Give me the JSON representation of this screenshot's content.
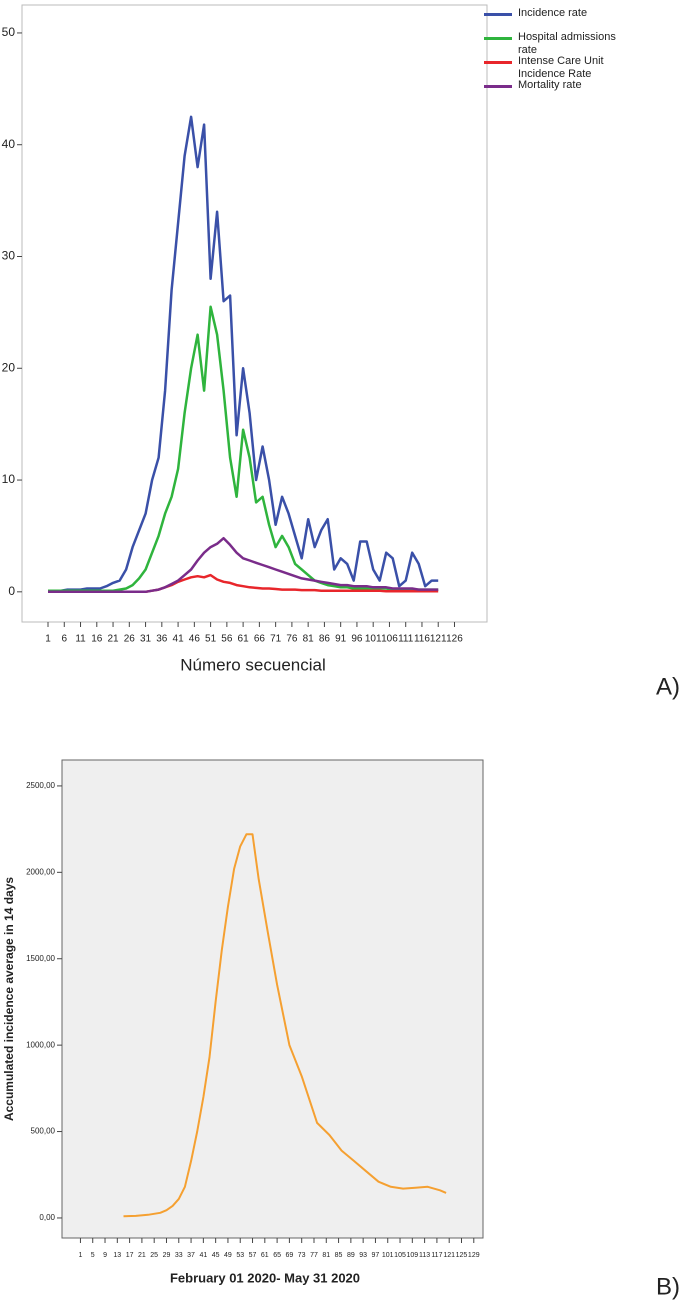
{
  "chart_data": [
    {
      "type": "line",
      "panel_label": "A)",
      "x_label": "Número secuencial",
      "legend": "right-outside",
      "grid": false,
      "x": [
        1,
        3,
        5,
        7,
        9,
        11,
        13,
        15,
        17,
        19,
        21,
        23,
        25,
        27,
        29,
        31,
        33,
        35,
        37,
        39,
        41,
        43,
        45,
        47,
        49,
        51,
        53,
        55,
        57,
        59,
        61,
        63,
        65,
        67,
        69,
        71,
        73,
        75,
        77,
        79,
        81,
        83,
        85,
        87,
        89,
        91,
        93,
        95,
        97,
        99,
        101,
        103,
        105,
        107,
        109,
        111,
        113,
        115,
        117,
        119,
        121
      ],
      "series": [
        {
          "name": "Incidence rate",
          "color": "#3a50a8",
          "values": [
            0.1,
            0.1,
            0.1,
            0.2,
            0.2,
            0.2,
            0.3,
            0.3,
            0.3,
            0.5,
            0.8,
            1,
            2,
            4,
            5.5,
            7,
            10,
            12,
            18,
            27,
            33,
            39,
            42.5,
            38,
            41.8,
            28,
            34,
            26,
            26.5,
            14,
            20,
            16,
            10,
            13,
            10,
            6,
            8.5,
            7,
            5,
            3,
            6.5,
            4,
            5.5,
            6.5,
            2,
            3,
            2.5,
            1,
            4.5,
            4.5,
            2,
            1,
            3.5,
            3,
            0.5,
            1,
            3.5,
            2.5,
            0.5,
            1,
            1
          ]
        },
        {
          "name": "Hospital admissions rate",
          "color": "#2fb43d",
          "values": [
            0.1,
            0.1,
            0.1,
            0.1,
            0.1,
            0.1,
            0.1,
            0.1,
            0.1,
            0.1,
            0.1,
            0.2,
            0.3,
            0.6,
            1.2,
            2,
            3.5,
            5,
            7,
            8.5,
            11,
            16,
            20,
            23,
            18,
            25.5,
            23,
            18,
            12,
            8.5,
            14.5,
            12,
            8,
            8.5,
            6,
            4,
            5,
            4,
            2.5,
            2,
            1.5,
            1,
            0.8,
            0.6,
            0.5,
            0.4,
            0.4,
            0.3,
            0.3,
            0.3,
            0.3,
            0.3,
            0.3,
            0.2,
            0.2,
            0.2,
            0.2,
            0.2,
            0.2,
            0.2,
            0.2
          ]
        },
        {
          "name": "Intense Care Unit Incidence Rate",
          "color": "#e8262b",
          "values": [
            0,
            0,
            0,
            0,
            0,
            0,
            0,
            0,
            0,
            0,
            0,
            0,
            0,
            0,
            0,
            0,
            0.1,
            0.2,
            0.4,
            0.6,
            0.9,
            1.1,
            1.3,
            1.4,
            1.3,
            1.5,
            1.1,
            0.9,
            0.8,
            0.6,
            0.5,
            0.4,
            0.35,
            0.3,
            0.3,
            0.25,
            0.2,
            0.2,
            0.2,
            0.15,
            0.15,
            0.15,
            0.1,
            0.1,
            0.1,
            0.1,
            0.1,
            0.1,
            0.1,
            0.1,
            0.1,
            0.1,
            0.05,
            0.05,
            0.05,
            0.05,
            0.05,
            0.05,
            0.05,
            0.05,
            0.05
          ]
        },
        {
          "name": "Mortality rate",
          "color": "#7a2c8a",
          "values": [
            0,
            0,
            0,
            0,
            0,
            0,
            0,
            0,
            0,
            0,
            0,
            0,
            0,
            0,
            0,
            0,
            0.1,
            0.2,
            0.4,
            0.7,
            1,
            1.5,
            2,
            2.8,
            3.5,
            4,
            4.3,
            4.8,
            4.2,
            3.5,
            3,
            2.8,
            2.6,
            2.4,
            2.2,
            2,
            1.8,
            1.6,
            1.4,
            1.2,
            1.1,
            1,
            0.9,
            0.8,
            0.7,
            0.6,
            0.6,
            0.5,
            0.5,
            0.5,
            0.4,
            0.4,
            0.4,
            0.3,
            0.3,
            0.3,
            0.3,
            0.2,
            0.2,
            0.2,
            0.2
          ]
        }
      ],
      "xlim": [
        -7,
        136
      ],
      "xticks": [
        1,
        6,
        11,
        16,
        21,
        26,
        31,
        36,
        41,
        46,
        51,
        56,
        61,
        66,
        71,
        76,
        81,
        86,
        91,
        96,
        101,
        106,
        111,
        116,
        121,
        126
      ],
      "ylim": [
        -2.7,
        52.5
      ],
      "yticks": [
        0,
        10,
        20,
        30,
        40,
        50
      ]
    },
    {
      "type": "line",
      "panel_label": "B)",
      "x_label": "February 01 2020- May 31 2020",
      "y_label": "Accumulated incidence average in 14 days",
      "grid": false,
      "x": [
        15,
        19,
        23,
        27,
        29,
        31,
        33,
        35,
        37,
        39,
        41,
        43,
        45,
        47,
        49,
        51,
        53,
        55,
        57,
        59,
        62,
        65,
        69,
        73,
        78,
        82,
        86,
        90,
        94,
        98,
        102,
        106,
        110,
        114,
        118,
        120
      ],
      "series": [
        {
          "color": "#f5a031",
          "values": [
            10,
            12,
            18,
            30,
            45,
            70,
            110,
            180,
            330,
            500,
            700,
            930,
            1250,
            1550,
            1800,
            2020,
            2150,
            2220,
            2220,
            1960,
            1650,
            1350,
            1000,
            820,
            550,
            480,
            390,
            330,
            270,
            210,
            180,
            170,
            175,
            180,
            160,
            145
          ]
        }
      ],
      "xlim": [
        -5,
        132
      ],
      "xticks": [
        1,
        5,
        9,
        13,
        17,
        21,
        25,
        29,
        33,
        37,
        41,
        45,
        49,
        53,
        57,
        61,
        65,
        69,
        73,
        77,
        81,
        85,
        89,
        93,
        97,
        101,
        105,
        109,
        113,
        117,
        121,
        125,
        129
      ],
      "ylim": [
        -116,
        2650
      ],
      "yticks": [
        {
          "value": 0,
          "label": "0,00"
        },
        {
          "value": 500,
          "label": "500,00"
        },
        {
          "value": 1000,
          "label": "1000,00"
        },
        {
          "value": 1500,
          "label": "1500,00"
        },
        {
          "value": 2000,
          "label": "2000,00"
        },
        {
          "value": 2500,
          "label": "2500,00"
        }
      ]
    }
  ]
}
